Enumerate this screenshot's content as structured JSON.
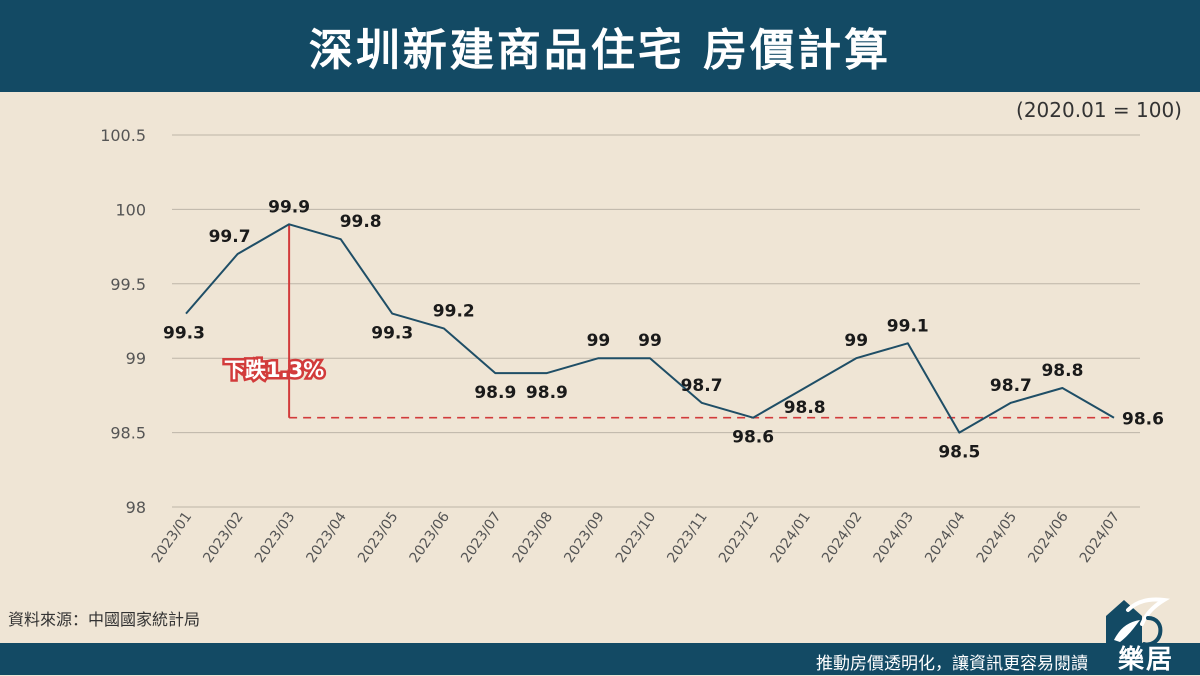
{
  "header": {
    "title": "深圳新建商品住宅 房價計算"
  },
  "index_note": "(2020.01 = 100)",
  "source": "資料來源：中國國家統計局",
  "footer": {
    "slogan": "推動房價透明化，讓資訊更容易閱讀",
    "logo_text": "樂居"
  },
  "colors": {
    "line": "#1f4e66",
    "accent": "#d23b3b",
    "header": "#134a64",
    "background": "#efe5d5",
    "grid": "#bdb5a8"
  },
  "chart_data": {
    "type": "line",
    "title": "深圳新建商品住宅 房價計算",
    "categories": [
      "2023/01",
      "2023/02",
      "2023/03",
      "2023/04",
      "2023/05",
      "2023/06",
      "2023/07",
      "2023/08",
      "2023/09",
      "2023/10",
      "2023/11",
      "2023/12",
      "2024/01",
      "2024/02",
      "2024/03",
      "2024/04",
      "2024/05",
      "2024/06",
      "2024/07"
    ],
    "series": [
      {
        "values": [
          99.3,
          99.7,
          99.9,
          99.8,
          99.3,
          99.2,
          98.9,
          98.9,
          99.0,
          99.0,
          98.7,
          98.6,
          98.8,
          99.0,
          99.1,
          98.5,
          98.7,
          98.8,
          98.6
        ]
      }
    ],
    "data_labels": [
      "99.3",
      "99.7",
      "99.9",
      "99.8",
      "99.3",
      "99.2",
      "98.9",
      "98.9",
      "99",
      "99",
      "98.7",
      "98.6",
      "98.8",
      "99",
      "99.1",
      "98.5",
      "98.7",
      "98.8",
      "98.6"
    ],
    "yticks": [
      "98",
      "98.5",
      "99",
      "99.5",
      "100",
      "100.5"
    ],
    "ylim": [
      98,
      100.5
    ],
    "grid": true,
    "annotation": {
      "text": "下跌1.3%",
      "from_category": "2023/03",
      "from_value": 99.9,
      "to_value": 98.6
    }
  }
}
